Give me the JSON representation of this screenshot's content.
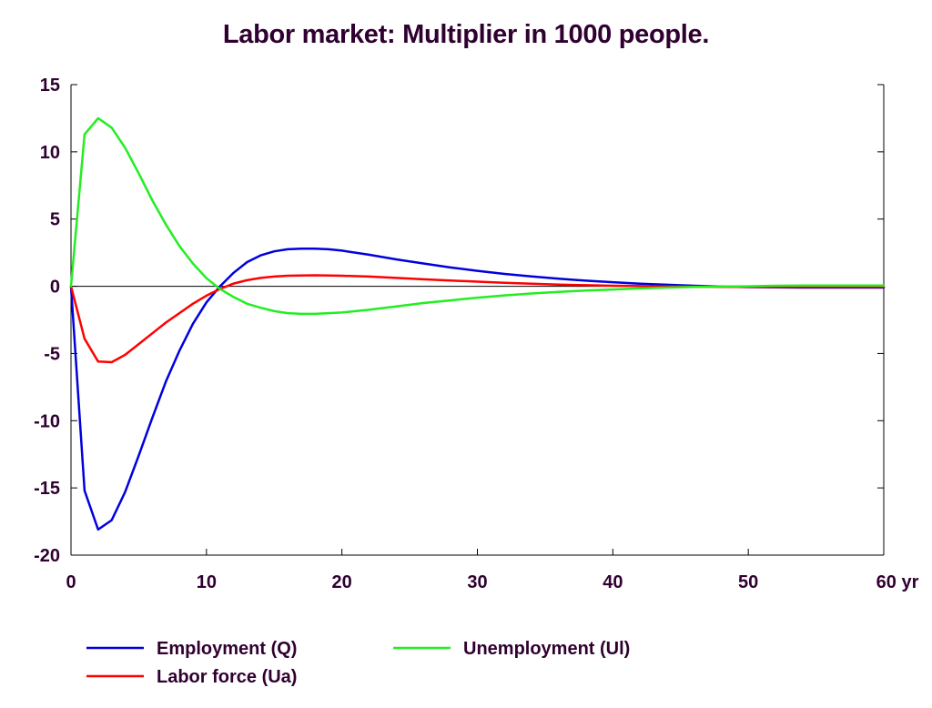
{
  "chart_data": {
    "type": "line",
    "title": "Labor market: Multiplier in 1000 people.",
    "x_unit_suffix": "yr",
    "xlim": [
      0,
      60
    ],
    "ylim": [
      -20,
      15
    ],
    "x_ticks": [
      0,
      10,
      20,
      30,
      40,
      50,
      60
    ],
    "y_ticks": [
      15,
      10,
      5,
      0,
      -5,
      -10,
      -15,
      -20
    ],
    "x": [
      0,
      1,
      2,
      3,
      4,
      5,
      6,
      7,
      8,
      9,
      10,
      11,
      12,
      13,
      14,
      15,
      16,
      17,
      18,
      19,
      20,
      22,
      24,
      26,
      28,
      30,
      32,
      34,
      36,
      38,
      40,
      42,
      44,
      46,
      48,
      50,
      52,
      54,
      56,
      58,
      60
    ],
    "series": [
      {
        "name": "Employment (Q)",
        "color": "#0000dd",
        "values": [
          0,
          -15.2,
          -18.1,
          -17.4,
          -15.3,
          -12.6,
          -9.8,
          -7.1,
          -4.8,
          -2.8,
          -1.2,
          0,
          1.0,
          1.8,
          2.3,
          2.6,
          2.75,
          2.8,
          2.8,
          2.75,
          2.65,
          2.35,
          2.0,
          1.7,
          1.4,
          1.15,
          0.92,
          0.73,
          0.56,
          0.42,
          0.3,
          0.19,
          0.11,
          0.04,
          -0.02,
          -0.06,
          -0.08,
          -0.1,
          -0.1,
          -0.1,
          -0.1
        ]
      },
      {
        "name": "Labor force (Ua)",
        "color": "#ff0000",
        "values": [
          0,
          -3.9,
          -5.6,
          -5.65,
          -5.1,
          -4.3,
          -3.5,
          -2.7,
          -2.0,
          -1.3,
          -0.7,
          -0.2,
          0.2,
          0.45,
          0.62,
          0.72,
          0.78,
          0.8,
          0.82,
          0.8,
          0.78,
          0.72,
          0.62,
          0.52,
          0.43,
          0.34,
          0.26,
          0.19,
          0.13,
          0.08,
          0.04,
          0.01,
          -0.01,
          -0.03,
          -0.04,
          -0.05,
          -0.05,
          -0.05,
          -0.05,
          -0.05,
          -0.05
        ]
      },
      {
        "name": "Unemployment (Ul)",
        "color": "#22ee22",
        "values": [
          0,
          11.3,
          12.5,
          11.8,
          10.3,
          8.4,
          6.4,
          4.6,
          3.0,
          1.7,
          0.6,
          -0.2,
          -0.8,
          -1.3,
          -1.6,
          -1.85,
          -2.0,
          -2.05,
          -2.05,
          -2.0,
          -1.95,
          -1.75,
          -1.5,
          -1.25,
          -1.05,
          -0.85,
          -0.68,
          -0.54,
          -0.42,
          -0.32,
          -0.24,
          -0.16,
          -0.1,
          -0.05,
          -0.02,
          0.0,
          0.04,
          0.05,
          0.05,
          0.05,
          0.05
        ]
      }
    ],
    "zero_line": true,
    "grid": false,
    "legend_position": "bottom"
  }
}
